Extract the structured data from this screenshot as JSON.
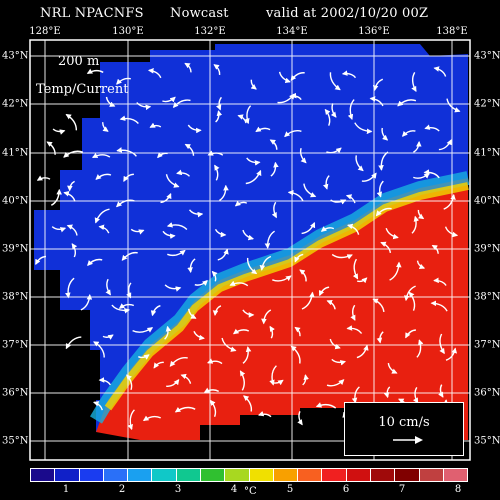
{
  "header": {
    "source": "NRL NPACNFS",
    "product": "Nowcast",
    "valid": "valid at 2002/10/20 00Z"
  },
  "map": {
    "depth": "200 m",
    "field": "Temp/Current",
    "lon_labels": [
      "128°E",
      "130°E",
      "132°E",
      "134°E",
      "136°E",
      "138°E"
    ],
    "lat_labels": [
      "43°N",
      "42°N",
      "41°N",
      "40°N",
      "39°N",
      "38°N",
      "37°N",
      "36°N",
      "35°N"
    ],
    "scale_label": "10 cm/s"
  },
  "colorbar": {
    "ticks": [
      "1",
      "2",
      "3",
      "4",
      "5",
      "6",
      "7",
      "8"
    ],
    "unit": "°C",
    "colors": [
      "#1a0a8c",
      "#1020c8",
      "#1a3cf0",
      "#2a70f8",
      "#1aa0f0",
      "#10c8c8",
      "#10c890",
      "#30c030",
      "#a8d820",
      "#f0e000",
      "#f8a000",
      "#f86020",
      "#f02020",
      "#d01010",
      "#a00a0a",
      "#800000",
      "#c04040",
      "#e06070"
    ]
  },
  "style": {
    "cold": "#1030d8",
    "warm": "#e82010",
    "current_arrows": "#ffffff"
  }
}
